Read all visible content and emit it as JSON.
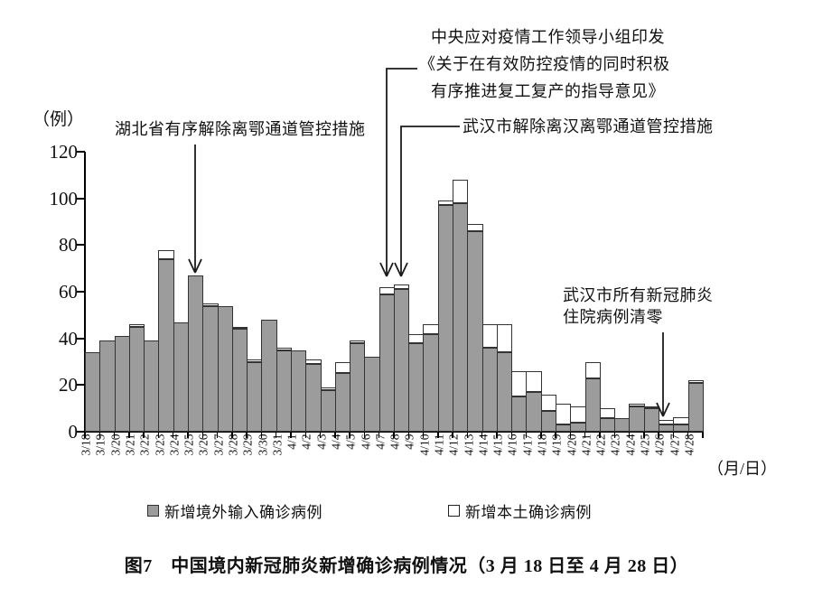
{
  "chart_data": {
    "type": "bar",
    "stacked": true,
    "grid": false,
    "legend_position": "bottom",
    "xlabel": "（月/日）",
    "ylabel": "（例）",
    "ylim": [
      0,
      120
    ],
    "yticks": [
      0,
      20,
      40,
      60,
      80,
      100,
      120
    ],
    "categories": [
      "3/18",
      "3/19",
      "3/20",
      "3/21",
      "3/22",
      "3/23",
      "3/24",
      "3/25",
      "3/26",
      "3/27",
      "3/28",
      "3/29",
      "3/30",
      "3/31",
      "4/1",
      "4/2",
      "4/3",
      "4/4",
      "4/5",
      "4/6",
      "4/7",
      "4/8",
      "4/9",
      "4/10",
      "4/11",
      "4/12",
      "4/13",
      "4/14",
      "4/15",
      "4/16",
      "4/17",
      "4/18",
      "4/19",
      "4/20",
      "4/21",
      "4/22",
      "4/23",
      "4/24",
      "4/25",
      "4/26",
      "4/27",
      "4/28"
    ],
    "series": [
      {
        "name": "新增境外输入确诊病例",
        "color": "#9c9c9c",
        "values": [
          34,
          39,
          41,
          45,
          39,
          74,
          47,
          67,
          54,
          54,
          44,
          30,
          48,
          35,
          35,
          29,
          18,
          25,
          38,
          32,
          59,
          61,
          38,
          42,
          97,
          98,
          86,
          36,
          34,
          15,
          17,
          9,
          3,
          4,
          23,
          6,
          6,
          11,
          10,
          3,
          3,
          21
        ]
      },
      {
        "name": "新增本土确诊病例",
        "color": "#ffffff",
        "values": [
          0,
          0,
          0,
          1,
          0,
          4,
          0,
          0,
          1,
          0,
          1,
          1,
          0,
          1,
          0,
          2,
          1,
          5,
          1,
          0,
          3,
          2,
          4,
          4,
          2,
          10,
          3,
          10,
          12,
          11,
          9,
          7,
          9,
          7,
          7,
          4,
          0,
          1,
          1,
          2,
          3,
          1
        ]
      }
    ]
  },
  "annotations": {
    "hubei": {
      "text": "湖北省有序解除离鄂通道管控措施",
      "points_to": "3/25"
    },
    "central": {
      "lines": [
        "中央应对疫情工作领导小组印发",
        "《关于在有效防控疫情的同时积极",
        "有序推进复工复产的指导意见》"
      ],
      "points_to": "4/7"
    },
    "wuhan_lift": {
      "text": "武汉市解除离汉离鄂通道管控措施",
      "points_to": "4/8"
    },
    "wuhan_zero": {
      "lines": [
        "武汉市所有新冠肺炎",
        "住院病例清零"
      ],
      "points_to": "4/26"
    }
  },
  "caption": "图7　中国境内新冠肺炎新增确诊病例情况（3 月 18 日至 4 月 28 日）",
  "colors": {
    "imported_bar": "#9c9c9c",
    "local_bar": "#ffffff",
    "bar_border": "#333333",
    "axis": "#000000"
  }
}
